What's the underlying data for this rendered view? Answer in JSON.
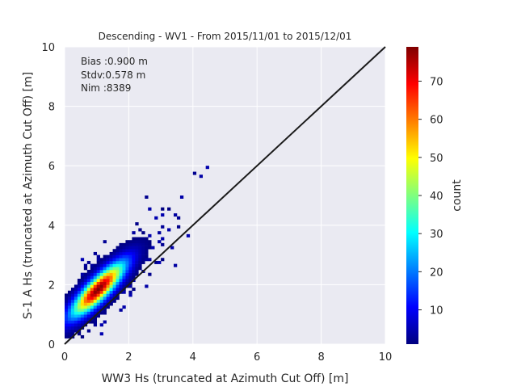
{
  "chart_data": {
    "type": "heatmap",
    "title": "Descending - WV1 - From 2015/11/01 to 2015/12/01",
    "xlabel": "WW3 Hs (truncated at Azimuth Cut Off) [m]",
    "ylabel": "S-1 A Hs (truncated at Azimuth Cut Off) [m]",
    "xlim": [
      0,
      10
    ],
    "ylim": [
      0,
      10
    ],
    "xticks": [
      0,
      2,
      4,
      6,
      8,
      10
    ],
    "yticks": [
      0,
      2,
      4,
      6,
      8,
      10
    ],
    "grid": true,
    "stats": [
      "Bias :0.900 m",
      "Stdv:0.578 m",
      "Nim :8389"
    ],
    "reference_line": {
      "from": [
        0,
        0
      ],
      "to": [
        10,
        10
      ]
    },
    "colorbar": {
      "label": "count",
      "range": [
        1,
        79
      ],
      "ticks": [
        10,
        20,
        30,
        40,
        50,
        60,
        70
      ],
      "colormap": "jet"
    },
    "density_peak": {
      "x": 1.0,
      "y": 1.8,
      "count": 79
    },
    "density_core": {
      "mean_x": 1.05,
      "mean_y": 1.85,
      "std_x": 0.55,
      "std_y": 0.6,
      "correlation": 0.85
    },
    "colors": {
      "background": "#eaeaf2",
      "grid": "#ffffff",
      "reference_line": "#1a1a1a",
      "text": "#262626"
    }
  }
}
